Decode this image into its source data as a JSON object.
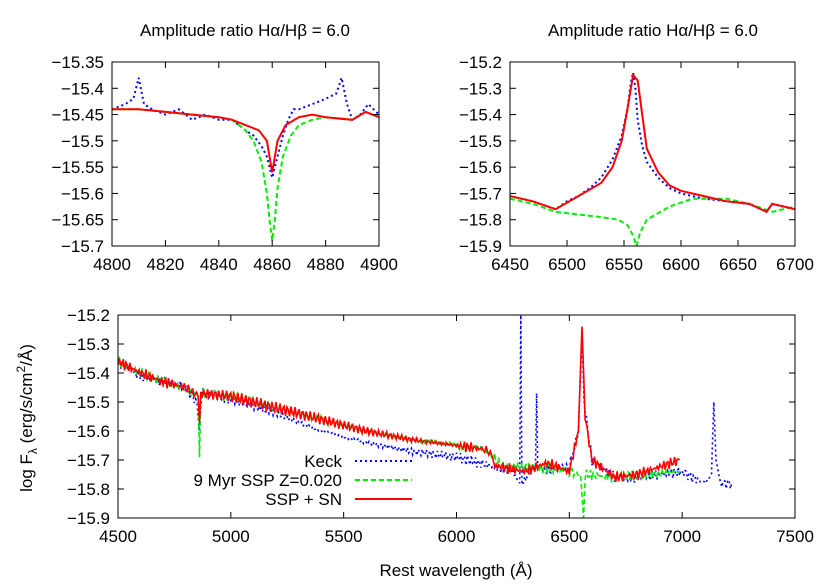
{
  "colors": {
    "keck": "#0000ff",
    "ssp": "#00ee00",
    "sn": "#ff0000"
  },
  "chart_data": [
    {
      "type": "line",
      "title": "Amplitude ratio Hα/Hβ = 6.0",
      "xlabel": "",
      "ylabel": "",
      "xlim": [
        4800,
        4900
      ],
      "ylim": [
        -15.7,
        -15.35
      ],
      "xticks": [
        "4800",
        "4820",
        "4840",
        "4860",
        "4880",
        "4900"
      ],
      "yticks": [
        "−15.35",
        "−15.4",
        "−15.45",
        "−15.5",
        "−15.55",
        "−15.6",
        "−15.65",
        "−15.7"
      ],
      "xtick_values": [
        4800,
        4820,
        4840,
        4860,
        4880,
        4900
      ],
      "ytick_values": [
        -15.35,
        -15.4,
        -15.45,
        -15.5,
        -15.55,
        -15.6,
        -15.65,
        -15.7
      ],
      "series": [
        {
          "name": "Keck",
          "style": "dotted",
          "x": [
            4800,
            4805,
            4808,
            4810,
            4812,
            4815,
            4820,
            4825,
            4830,
            4835,
            4840,
            4845,
            4850,
            4853,
            4856,
            4858,
            4860,
            4862,
            4864,
            4866,
            4868,
            4870,
            4875,
            4880,
            4884,
            4886,
            4888,
            4890,
            4893,
            4896,
            4900
          ],
          "y": [
            -15.44,
            -15.43,
            -15.42,
            -15.38,
            -15.43,
            -15.44,
            -15.45,
            -15.44,
            -15.46,
            -15.45,
            -15.46,
            -15.46,
            -15.48,
            -15.49,
            -15.51,
            -15.53,
            -15.57,
            -15.53,
            -15.49,
            -15.46,
            -15.44,
            -15.44,
            -15.43,
            -15.42,
            -15.41,
            -15.38,
            -15.43,
            -15.46,
            -15.45,
            -15.43,
            -15.45
          ]
        },
        {
          "name": "9 Myr SSP Z=0.020",
          "style": "dashed",
          "x": [
            4800,
            4810,
            4820,
            4830,
            4840,
            4845,
            4850,
            4853,
            4856,
            4858,
            4859,
            4860,
            4861,
            4862,
            4864,
            4867,
            4870,
            4875,
            4880,
            4890,
            4895,
            4900
          ],
          "y": [
            -15.44,
            -15.44,
            -15.445,
            -15.45,
            -15.455,
            -15.46,
            -15.48,
            -15.5,
            -15.54,
            -15.6,
            -15.65,
            -15.69,
            -15.65,
            -15.59,
            -15.53,
            -15.49,
            -15.47,
            -15.46,
            -15.455,
            -15.46,
            -15.445,
            -15.455
          ]
        },
        {
          "name": "SSP + SN",
          "style": "solid",
          "x": [
            4800,
            4810,
            4820,
            4830,
            4840,
            4845,
            4850,
            4855,
            4858,
            4860,
            4862,
            4865,
            4870,
            4875,
            4880,
            4890,
            4895,
            4900
          ],
          "y": [
            -15.44,
            -15.44,
            -15.445,
            -15.45,
            -15.455,
            -15.46,
            -15.47,
            -15.48,
            -15.5,
            -15.56,
            -15.5,
            -15.47,
            -15.455,
            -15.45,
            -15.455,
            -15.46,
            -15.445,
            -15.455
          ]
        }
      ]
    },
    {
      "type": "line",
      "title": "Amplitude ratio Hα/Hβ = 6.0",
      "xlabel": "",
      "ylabel": "",
      "xlim": [
        6450,
        6700
      ],
      "ylim": [
        -15.9,
        -15.2
      ],
      "xticks": [
        "6450",
        "6500",
        "6550",
        "6600",
        "6650",
        "6700"
      ],
      "yticks": [
        "−15.2",
        "−15.3",
        "−15.4",
        "−15.5",
        "−15.6",
        "−15.7",
        "−15.8",
        "−15.9"
      ],
      "xtick_values": [
        6450,
        6500,
        6550,
        6600,
        6650,
        6700
      ],
      "ytick_values": [
        -15.2,
        -15.3,
        -15.4,
        -15.5,
        -15.6,
        -15.7,
        -15.8,
        -15.9
      ],
      "series": [
        {
          "name": "Keck",
          "style": "dotted",
          "x": [
            6450,
            6470,
            6490,
            6500,
            6510,
            6520,
            6530,
            6540,
            6548,
            6553,
            6556,
            6558,
            6560,
            6562,
            6566,
            6570,
            6580,
            6590,
            6600,
            6620,
            6640,
            6660,
            6675,
            6680,
            6700
          ],
          "y": [
            -15.71,
            -15.73,
            -15.76,
            -15.73,
            -15.71,
            -15.68,
            -15.64,
            -15.57,
            -15.48,
            -15.38,
            -15.28,
            -15.24,
            -15.3,
            -15.42,
            -15.52,
            -15.58,
            -15.64,
            -15.68,
            -15.7,
            -15.72,
            -15.73,
            -15.74,
            -15.77,
            -15.74,
            -15.76
          ]
        },
        {
          "name": "9 Myr SSP Z=0.020",
          "style": "dashed",
          "x": [
            6450,
            6470,
            6490,
            6510,
            6530,
            6545,
            6553,
            6558,
            6561,
            6564,
            6570,
            6590,
            6610,
            6640,
            6660,
            6680,
            6700
          ],
          "y": [
            -15.72,
            -15.74,
            -15.77,
            -15.78,
            -15.79,
            -15.8,
            -15.82,
            -15.86,
            -15.9,
            -15.85,
            -15.8,
            -15.75,
            -15.72,
            -15.72,
            -15.74,
            -15.77,
            -15.75
          ]
        },
        {
          "name": "SSP + SN",
          "style": "solid",
          "x": [
            6450,
            6470,
            6490,
            6510,
            6530,
            6540,
            6548,
            6553,
            6558,
            6562,
            6566,
            6570,
            6580,
            6590,
            6600,
            6620,
            6640,
            6660,
            6675,
            6680,
            6700
          ],
          "y": [
            -15.71,
            -15.73,
            -15.76,
            -15.71,
            -15.66,
            -15.6,
            -15.5,
            -15.38,
            -15.25,
            -15.27,
            -15.4,
            -15.53,
            -15.62,
            -15.67,
            -15.69,
            -15.71,
            -15.73,
            -15.74,
            -15.77,
            -15.74,
            -15.76
          ]
        }
      ]
    },
    {
      "type": "line",
      "title": "",
      "xlabel": "Rest wavelength (Å)",
      "ylabel_main": "log F",
      "ylabel_sub": "λ",
      "ylabel_unit": " (erg/s/cm",
      "ylabel_sup": "2",
      "ylabel_end": "/Å)",
      "xlim": [
        4500,
        7500
      ],
      "ylim": [
        -15.9,
        -15.2
      ],
      "xticks": [
        "4500",
        "5000",
        "5500",
        "6000",
        "6500",
        "7000",
        "7500"
      ],
      "yticks": [
        "−15.2",
        "−15.3",
        "−15.4",
        "−15.5",
        "−15.6",
        "−15.7",
        "−15.8",
        "−15.9"
      ],
      "xtick_values": [
        4500,
        5000,
        5500,
        6000,
        6500,
        7000,
        7500
      ],
      "ytick_values": [
        -15.2,
        -15.3,
        -15.4,
        -15.5,
        -15.6,
        -15.7,
        -15.8,
        -15.9
      ],
      "legend_position": "bottom-left-center",
      "series": [
        {
          "name": "Keck",
          "style": "dotted",
          "x": [
            4500,
            4600,
            4700,
            4800,
            4850,
            4860,
            4870,
            5000,
            5200,
            5400,
            5600,
            5800,
            6000,
            6150,
            6250,
            6280,
            6285,
            6290,
            6350,
            6355,
            6360,
            6400,
            6450,
            6500,
            6540,
            6556,
            6565,
            6600,
            6700,
            6800,
            6900,
            7000,
            7050,
            7100,
            7130,
            7140,
            7150,
            7170,
            7220
          ],
          "y": [
            -15.36,
            -15.41,
            -15.43,
            -15.45,
            -15.5,
            -15.6,
            -15.47,
            -15.49,
            -15.54,
            -15.6,
            -15.64,
            -15.67,
            -15.69,
            -15.72,
            -15.74,
            -15.78,
            -15.2,
            -15.78,
            -15.72,
            -15.47,
            -15.72,
            -15.74,
            -15.72,
            -15.73,
            -15.6,
            -15.25,
            -15.5,
            -15.7,
            -15.76,
            -15.76,
            -15.75,
            -15.74,
            -15.76,
            -15.78,
            -15.75,
            -15.5,
            -15.7,
            -15.78,
            -15.78
          ]
        },
        {
          "name": "9 Myr SSP Z=0.020",
          "style": "dashed",
          "x": [
            4500,
            4600,
            4700,
            4800,
            4855,
            4861,
            4867,
            5000,
            5200,
            5400,
            5600,
            5800,
            6000,
            6100,
            6150,
            6200,
            6400,
            6500,
            6550,
            6563,
            6570,
            6700,
            6990
          ],
          "y": [
            -15.36,
            -15.4,
            -15.43,
            -15.45,
            -15.48,
            -15.69,
            -15.47,
            -15.48,
            -15.52,
            -15.56,
            -15.6,
            -15.63,
            -15.65,
            -15.66,
            -15.68,
            -15.72,
            -15.73,
            -15.74,
            -15.75,
            -15.9,
            -15.75,
            -15.76,
            -15.74
          ]
        },
        {
          "name": "SSP + SN",
          "style": "solid",
          "x": [
            4500,
            4600,
            4700,
            4800,
            4855,
            4861,
            4867,
            5000,
            5200,
            5400,
            5600,
            5800,
            6000,
            6100,
            6150,
            6170,
            6300,
            6400,
            6500,
            6540,
            6556,
            6570,
            6600,
            6700,
            6800,
            6990
          ],
          "y": [
            -15.36,
            -15.4,
            -15.43,
            -15.45,
            -15.48,
            -15.57,
            -15.47,
            -15.48,
            -15.52,
            -15.56,
            -15.6,
            -15.63,
            -15.65,
            -15.66,
            -15.67,
            -15.72,
            -15.74,
            -15.71,
            -15.74,
            -15.6,
            -15.24,
            -15.55,
            -15.7,
            -15.76,
            -15.75,
            -15.7
          ]
        }
      ]
    }
  ]
}
